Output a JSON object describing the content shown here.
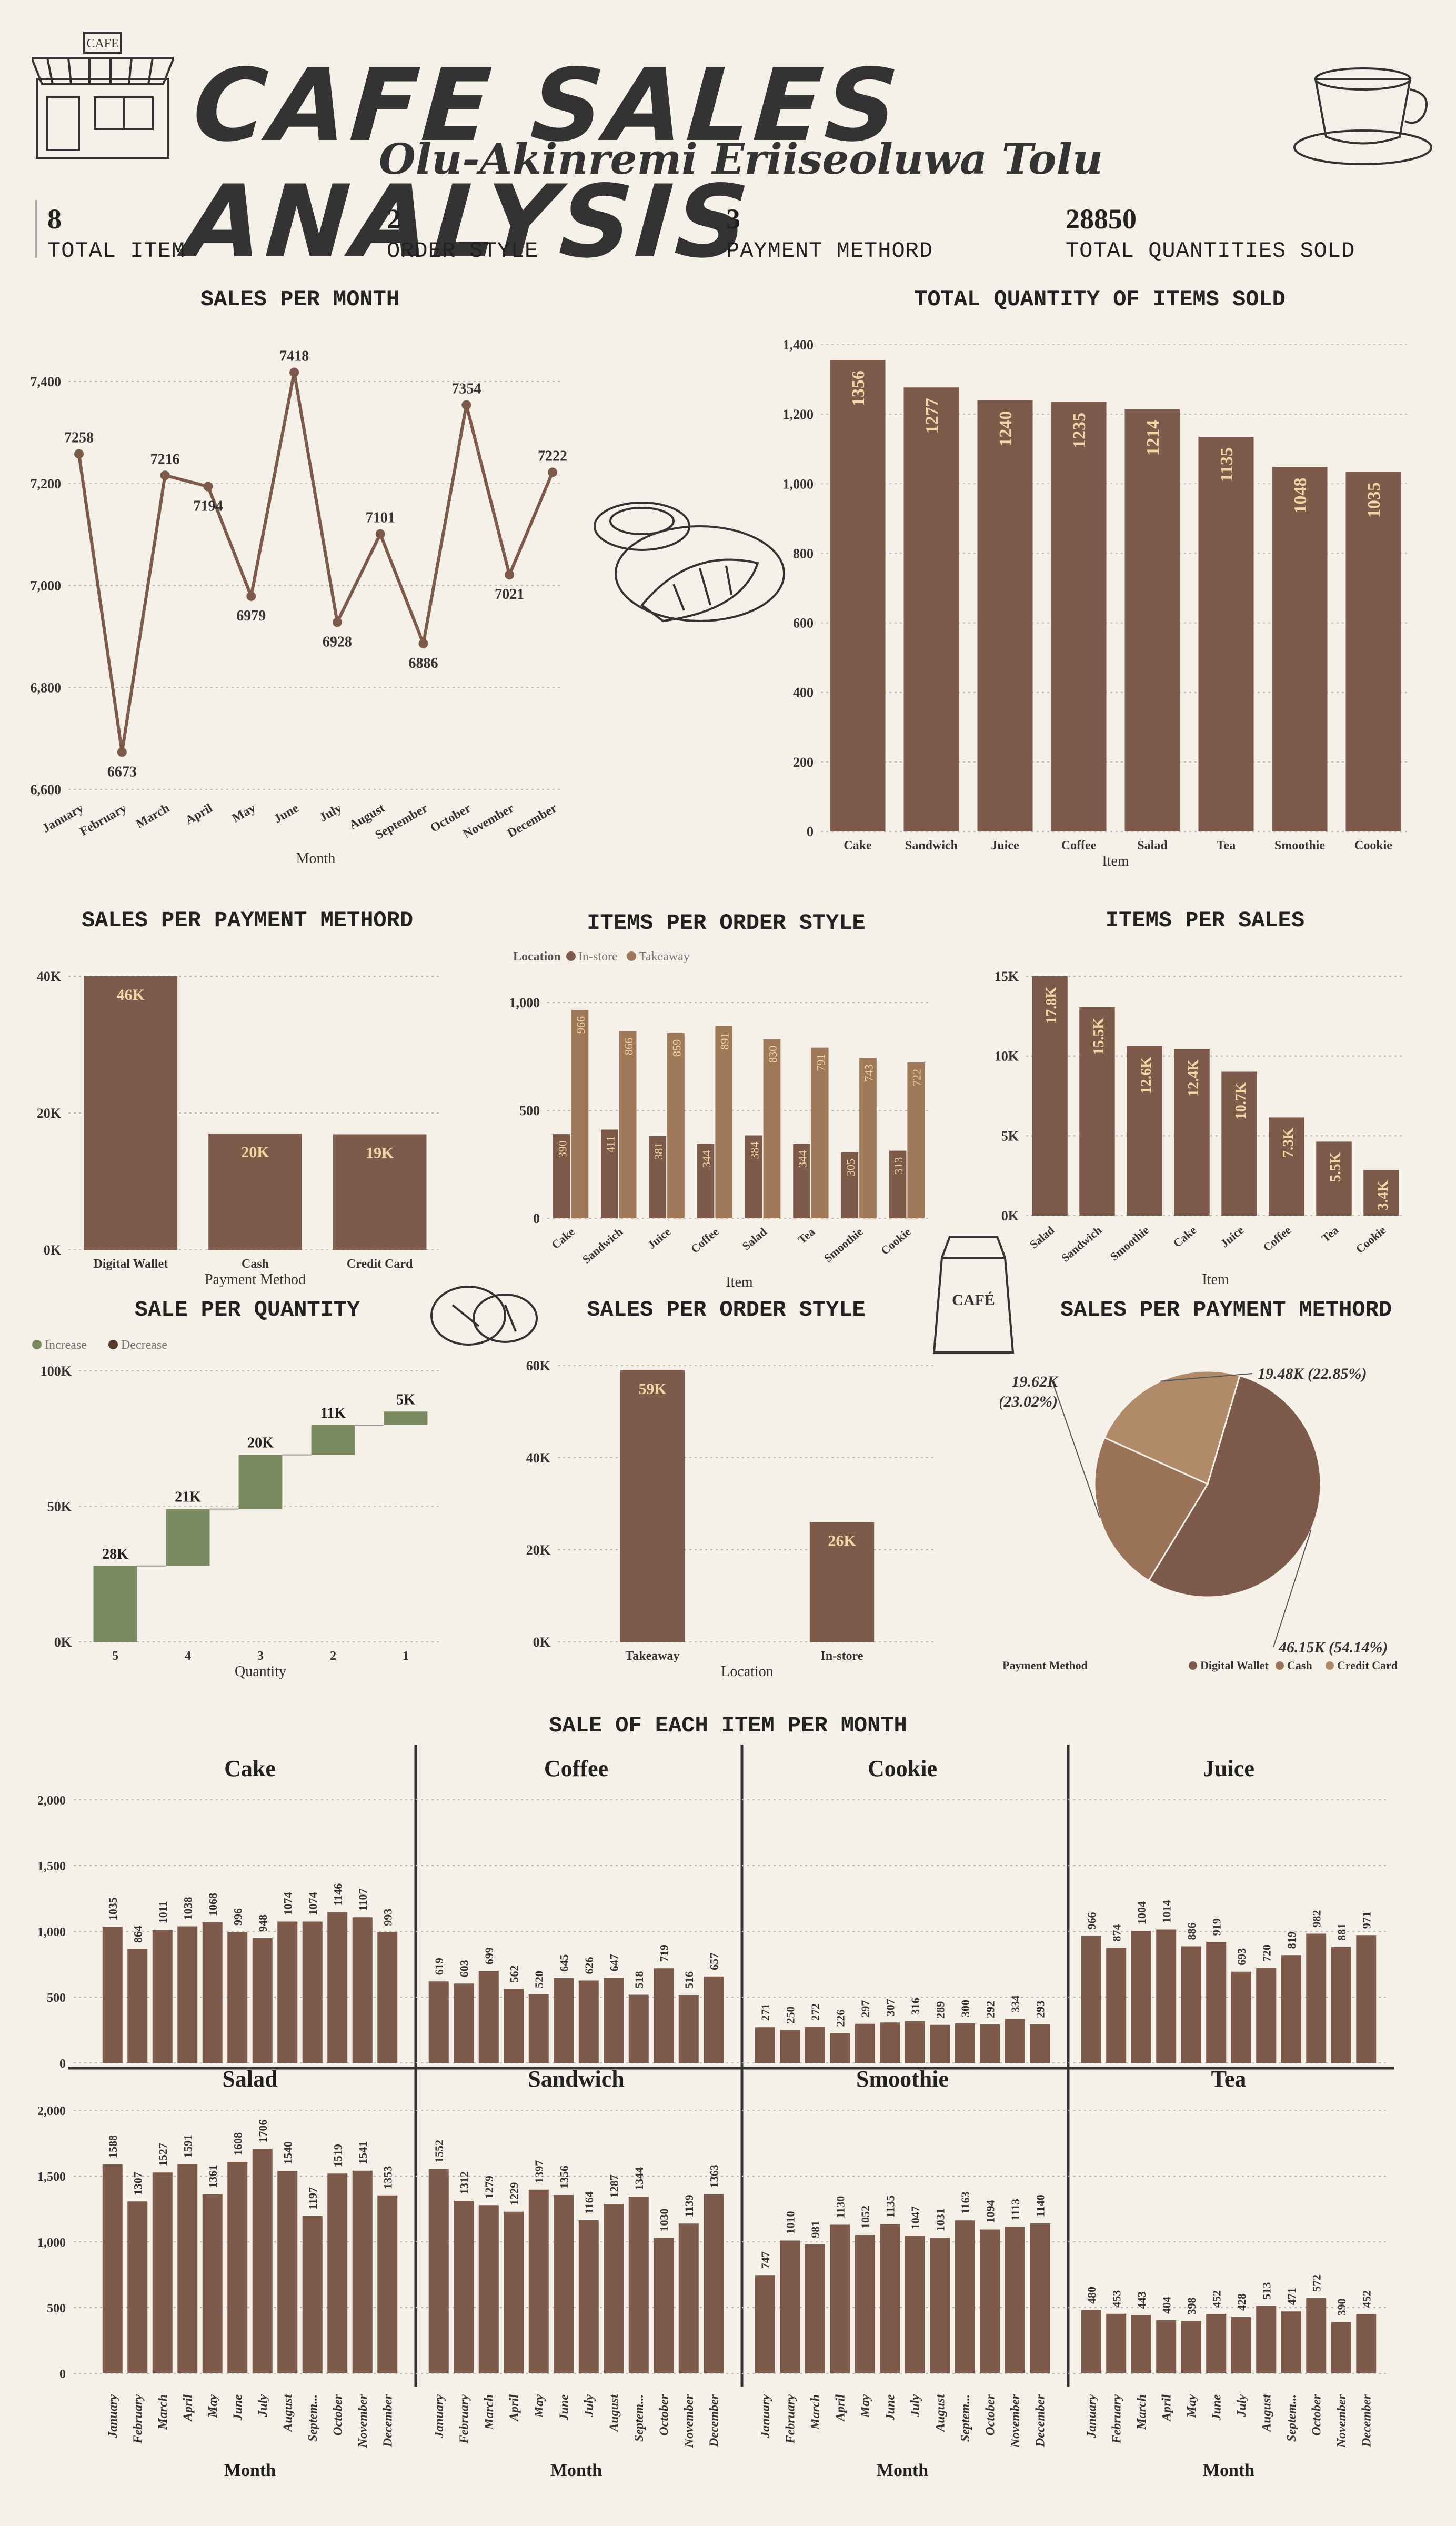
{
  "header": {
    "title": "CAFE SALES ANALYSIS",
    "subtitle": "Olu-Akinremi Eriiseoluwa Tolu",
    "shop_sign": "CAFE",
    "bag_label": "CAFÉ"
  },
  "kpis": [
    {
      "value": "8",
      "label": "TOTAL ITEM"
    },
    {
      "value": "2",
      "label": "ORDER STYLE"
    },
    {
      "value": "3",
      "label": "PAYMENT METHORD"
    },
    {
      "value": "28850",
      "label": "TOTAL QUANTITIES SOLD"
    }
  ],
  "colors": {
    "brown": "#7e5a4a",
    "tan": "#a0785a",
    "green": "#7a8a60",
    "label_gold": "#f0d7a6",
    "line": "#7e5a4a"
  },
  "titles": {
    "sales_per_month": "SALES PER MONTH",
    "qty_items": "TOTAL QUANTITY OF ITEMS SOLD",
    "sales_payment": "SALES PER PAYMENT METHORD",
    "items_order_style": "ITEMS PER ORDER STYLE",
    "items_per_sales": "ITEMS PER SALES",
    "sale_per_quantity": "SALE PER QUANTITY",
    "sales_order_style": "SALES PER ORDER STYLE",
    "sales_payment_pie": "SALES PER PAYMENT METHORD",
    "each_item_month": "SALE OF EACH ITEM PER MONTH"
  },
  "chart_data": [
    {
      "id": "sales_per_month",
      "type": "line",
      "xlabel": "Month",
      "ylabel": "",
      "categories": [
        "January",
        "February",
        "March",
        "April",
        "May",
        "June",
        "July",
        "August",
        "September",
        "October",
        "November",
        "December"
      ],
      "values": [
        7258,
        6673,
        7216,
        7194,
        6979,
        7418,
        6928,
        7101,
        6886,
        7354,
        7021,
        7222
      ],
      "ylim": [
        6600,
        7400
      ],
      "yticks": [
        "6,600",
        "6,800",
        "7,000",
        "7,200",
        "7,400"
      ],
      "grid": true
    },
    {
      "id": "qty_items",
      "type": "bar",
      "xlabel": "Item",
      "ylabel": "",
      "categories": [
        "Cake",
        "Sandwich",
        "Juice",
        "Coffee",
        "Salad",
        "Tea",
        "Smoothie",
        "Cookie"
      ],
      "values": [
        1356,
        1277,
        1240,
        1235,
        1214,
        1135,
        1048,
        1035
      ],
      "ylim": [
        0,
        1400
      ],
      "yticks": [
        "0",
        "200",
        "400",
        "600",
        "800",
        "1,000",
        "1,200",
        "1,400"
      ],
      "grid": true
    },
    {
      "id": "sales_payment",
      "type": "bar",
      "xlabel": "Payment Method",
      "ylabel": "",
      "categories": [
        "Digital Wallet",
        "Cash",
        "Credit Card"
      ],
      "values": [
        46150,
        19620,
        19480
      ],
      "labels": [
        "46K",
        "20K",
        "19K"
      ],
      "ylim": [
        0,
        46150
      ],
      "yticks": [
        "0K",
        "20K",
        "40K"
      ],
      "grid": true
    },
    {
      "id": "items_order_style",
      "type": "bar",
      "xlabel": "Item",
      "ylabel": "",
      "legend_title": "Location",
      "legend": [
        "In-store",
        "Takeaway"
      ],
      "categories": [
        "Cake",
        "Sandwich",
        "Juice",
        "Coffee",
        "Salad",
        "Tea",
        "Smoothie",
        "Cookie"
      ],
      "series": [
        {
          "name": "In-store",
          "values": [
            390,
            411,
            381,
            344,
            384,
            344,
            305,
            313
          ]
        },
        {
          "name": "Takeaway",
          "values": [
            966,
            866,
            859,
            891,
            830,
            791,
            743,
            722
          ]
        }
      ],
      "ylim": [
        0,
        1000
      ],
      "yticks": [
        "0",
        "500",
        "1,000"
      ],
      "grid": true
    },
    {
      "id": "items_per_sales",
      "type": "bar",
      "xlabel": "Item",
      "ylabel": "",
      "categories": [
        "Salad",
        "Sandwich",
        "Smoothie",
        "Cake",
        "Juice",
        "Coffee",
        "Tea",
        "Cookie"
      ],
      "values": [
        17800,
        15500,
        12600,
        12400,
        10700,
        7300,
        5500,
        3400
      ],
      "labels": [
        "17.8K",
        "15.5K",
        "12.6K",
        "12.4K",
        "10.7K",
        "7.3K",
        "5.5K",
        "3.4K"
      ],
      "ylim": [
        0,
        17800
      ],
      "yticks": [
        "0K",
        "5K",
        "10K",
        "15K"
      ],
      "grid": true
    },
    {
      "id": "sale_per_quantity",
      "type": "waterfall",
      "xlabel": "Quantity",
      "ylabel": "",
      "legend": [
        "Increase",
        "Decrease"
      ],
      "categories": [
        "5",
        "4",
        "3",
        "2",
        "1"
      ],
      "values": [
        28000,
        21000,
        20000,
        11000,
        5000
      ],
      "labels": [
        "28K",
        "21K",
        "20K",
        "11K",
        "5K"
      ],
      "ylim": [
        0,
        100000
      ],
      "yticks": [
        "0K",
        "50K",
        "100K"
      ],
      "grid": true
    },
    {
      "id": "sales_order_style",
      "type": "bar",
      "xlabel": "Location",
      "ylabel": "",
      "categories": [
        "Takeaway",
        "In-store"
      ],
      "values": [
        59000,
        26000
      ],
      "labels": [
        "59K",
        "26K"
      ],
      "ylim": [
        0,
        60000
      ],
      "yticks": [
        "0K",
        "20K",
        "40K",
        "60K"
      ],
      "grid": true
    },
    {
      "id": "sales_payment_pie",
      "type": "pie",
      "legend_title": "Payment Method",
      "legend": [
        "Digital Wallet",
        "Cash",
        "Credit Card"
      ],
      "slices": [
        {
          "name": "Digital Wallet",
          "value": 46150,
          "label": "46.15K (54.14%)"
        },
        {
          "name": "Cash",
          "value": 19620,
          "label": "19.62K (23.02%)"
        },
        {
          "name": "Credit Card",
          "value": 19480,
          "label": "19.48K (22.85%)"
        }
      ]
    },
    {
      "id": "each_item_month",
      "type": "bar",
      "xlabel": "Month",
      "month_labels": [
        "January",
        "February",
        "March",
        "April",
        "May",
        "June",
        "July",
        "August",
        "Septem...",
        "October",
        "November",
        "December"
      ],
      "yticks": [
        "0",
        "500",
        "1,000",
        "1,500",
        "2,000"
      ],
      "ylim": [
        0,
        2000
      ],
      "panels": [
        {
          "name": "Cake",
          "values": [
            1035,
            864,
            1011,
            1038,
            1068,
            996,
            948,
            1074,
            1074,
            1146,
            1107,
            993
          ]
        },
        {
          "name": "Coffee",
          "values": [
            619,
            603,
            699,
            562,
            520,
            645,
            626,
            647,
            518,
            719,
            516,
            657
          ]
        },
        {
          "name": "Cookie",
          "values": [
            271,
            250,
            272,
            226,
            297,
            307,
            316,
            289,
            300,
            292,
            334,
            293
          ]
        },
        {
          "name": "Juice",
          "values": [
            966,
            874,
            1004,
            1014,
            886,
            919,
            693,
            720,
            819,
            982,
            881,
            971
          ]
        },
        {
          "name": "Salad",
          "values": [
            1588,
            1307,
            1527,
            1591,
            1361,
            1608,
            1706,
            1540,
            1197,
            1519,
            1541,
            1353
          ]
        },
        {
          "name": "Sandwich",
          "values": [
            1552,
            1312,
            1279,
            1229,
            1397,
            1356,
            1164,
            1287,
            1344,
            1030,
            1139,
            1363
          ]
        },
        {
          "name": "Smoothie",
          "values": [
            747,
            1010,
            981,
            1130,
            1052,
            1135,
            1047,
            1031,
            1163,
            1094,
            1113,
            1140
          ]
        },
        {
          "name": "Tea",
          "values": [
            480,
            453,
            443,
            404,
            398,
            452,
            428,
            513,
            471,
            572,
            390,
            452
          ]
        }
      ]
    }
  ]
}
